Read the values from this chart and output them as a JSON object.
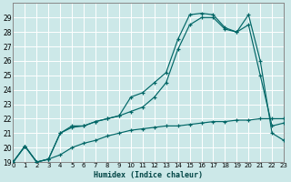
{
  "xlabel": "Humidex (Indice chaleur)",
  "bg_color": "#cce8e8",
  "grid_color": "#ffffff",
  "line_color": "#006666",
  "xlim": [
    0,
    23
  ],
  "ylim": [
    19,
    30
  ],
  "xticks": [
    0,
    1,
    2,
    3,
    4,
    5,
    6,
    7,
    8,
    9,
    10,
    11,
    12,
    13,
    14,
    15,
    16,
    17,
    18,
    19,
    20,
    21,
    22,
    23
  ],
  "yticks": [
    19,
    20,
    21,
    22,
    23,
    24,
    25,
    26,
    27,
    28,
    29
  ],
  "s1_x": [
    0,
    1,
    2,
    3,
    4,
    5,
    6,
    7,
    8,
    9,
    10,
    11,
    12,
    13,
    14,
    15,
    16,
    17,
    18,
    19,
    20,
    21,
    22,
    23
  ],
  "s1_y": [
    19.0,
    20.1,
    19.0,
    19.2,
    19.5,
    20.0,
    20.3,
    20.5,
    20.8,
    21.0,
    21.2,
    21.3,
    21.4,
    21.5,
    21.5,
    21.6,
    21.7,
    21.8,
    21.8,
    21.9,
    21.9,
    22.0,
    22.0,
    22.0
  ],
  "s2_x": [
    0,
    1,
    2,
    3,
    4,
    5,
    6,
    7,
    8,
    9,
    10,
    11,
    12,
    13,
    14,
    15,
    16,
    17,
    18,
    19,
    20,
    21,
    22,
    23
  ],
  "s2_y": [
    19.0,
    20.1,
    19.0,
    19.2,
    21.0,
    21.5,
    21.5,
    21.8,
    22.0,
    22.2,
    23.5,
    23.8,
    24.5,
    25.2,
    27.5,
    29.2,
    29.3,
    29.2,
    28.3,
    28.0,
    29.2,
    26.0,
    21.0,
    20.5
  ],
  "s3_x": [
    0,
    1,
    2,
    3,
    4,
    5,
    6,
    7,
    8,
    9,
    10,
    11,
    12,
    13,
    14,
    15,
    16,
    17,
    18,
    19,
    20,
    21,
    22,
    23
  ],
  "s3_y": [
    19.0,
    20.1,
    19.0,
    19.2,
    21.0,
    21.4,
    21.5,
    21.8,
    22.0,
    22.2,
    22.5,
    22.8,
    23.5,
    24.5,
    26.8,
    28.5,
    29.0,
    29.0,
    28.2,
    28.0,
    28.5,
    25.0,
    21.5,
    21.7
  ]
}
